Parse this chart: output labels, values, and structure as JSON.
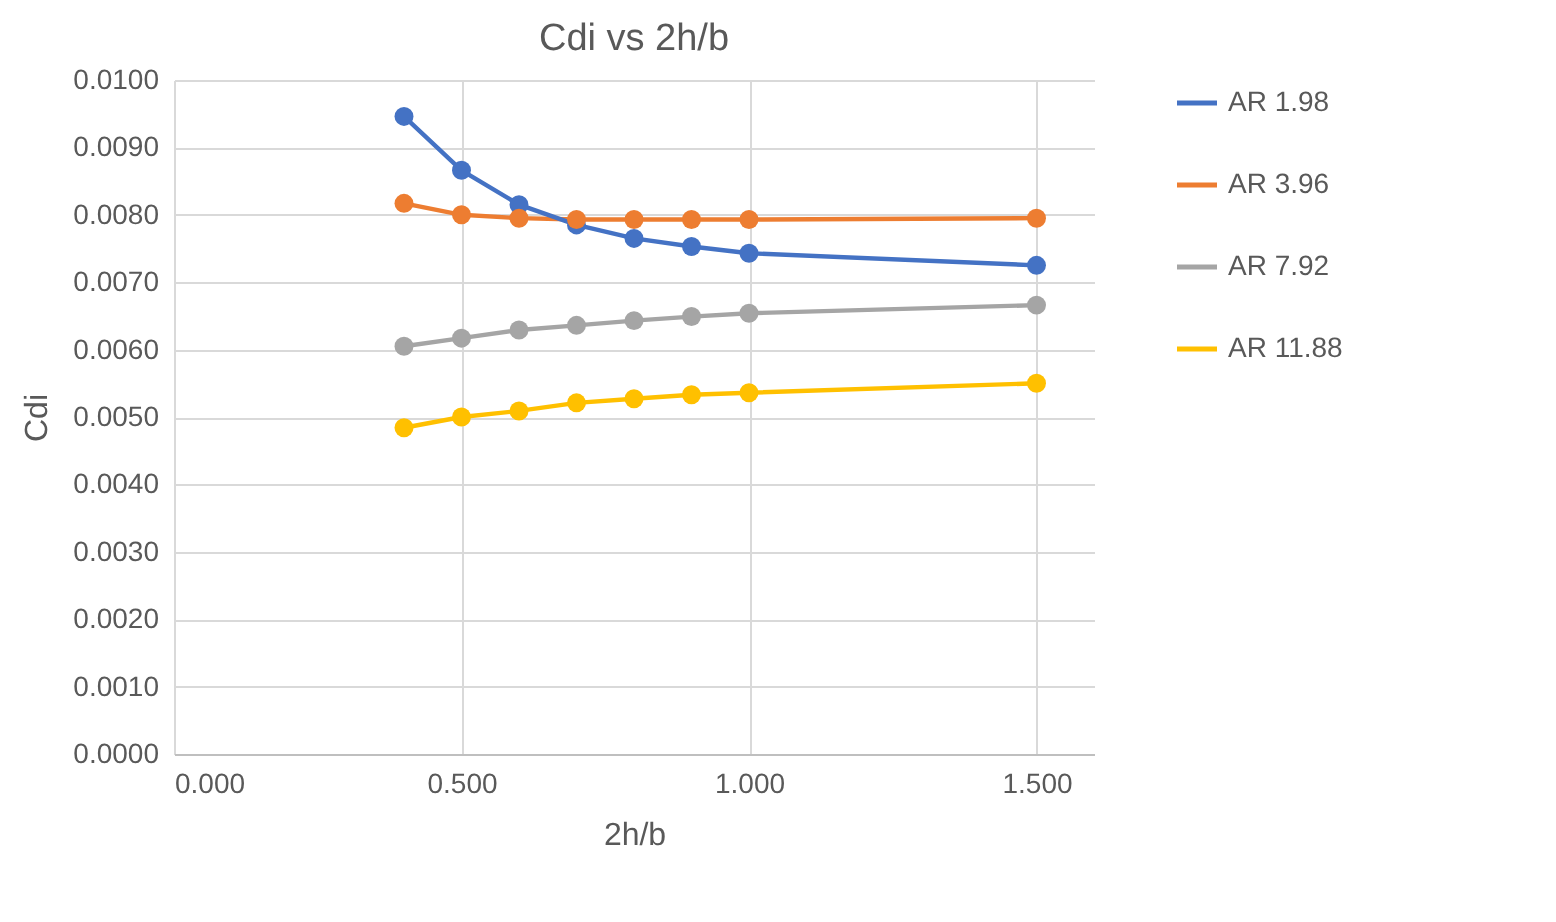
{
  "chart_data": {
    "type": "line",
    "title": "Cdi vs 2h/b",
    "xlabel": "2h/b",
    "ylabel": "Cdi",
    "x": [
      0.4,
      0.5,
      0.6,
      0.7,
      0.8,
      0.9,
      1.0,
      1.5
    ],
    "series": [
      {
        "name": "AR 1.98",
        "color": "#4472c4",
        "values": [
          0.00946,
          0.00866,
          0.00815,
          0.00785,
          0.00765,
          0.00753,
          0.00743,
          0.00725
        ]
      },
      {
        "name": "AR 3.96",
        "color": "#ed7d31",
        "values": [
          0.00817,
          0.008,
          0.00795,
          0.00793,
          0.00793,
          0.00793,
          0.00793,
          0.00795
        ]
      },
      {
        "name": "AR 7.92",
        "color": "#a5a5a5",
        "values": [
          0.00605,
          0.00617,
          0.00629,
          0.00636,
          0.00643,
          0.00649,
          0.00654,
          0.00666
        ]
      },
      {
        "name": "AR 11.88",
        "color": "#ffc000",
        "values": [
          0.00484,
          0.005,
          0.00509,
          0.00521,
          0.00527,
          0.00533,
          0.00536,
          0.0055
        ]
      }
    ],
    "xlim": [
      0,
      1.6
    ],
    "xticks": [
      {
        "value": 0,
        "label": "0.000"
      },
      {
        "value": 0.5,
        "label": "0.500"
      },
      {
        "value": 1,
        "label": "1.000"
      },
      {
        "value": 1.5,
        "label": "1.500"
      }
    ],
    "ylim": [
      0,
      0.01
    ],
    "yticks": [
      {
        "value": 0,
        "label": "0.0000"
      },
      {
        "value": 0.001,
        "label": "0.0010"
      },
      {
        "value": 0.002,
        "label": "0.0020"
      },
      {
        "value": 0.003,
        "label": "0.0030"
      },
      {
        "value": 0.004,
        "label": "0.0040"
      },
      {
        "value": 0.005,
        "label": "0.0050"
      },
      {
        "value": 0.006,
        "label": "0.0060"
      },
      {
        "value": 0.007,
        "label": "0.0070"
      },
      {
        "value": 0.008,
        "label": "0.0080"
      },
      {
        "value": 0.009,
        "label": "0.0090"
      },
      {
        "value": 0.01,
        "label": "0.0100"
      }
    ],
    "grid": true,
    "legend": "right",
    "marker": "circle",
    "line_style": "solid"
  }
}
